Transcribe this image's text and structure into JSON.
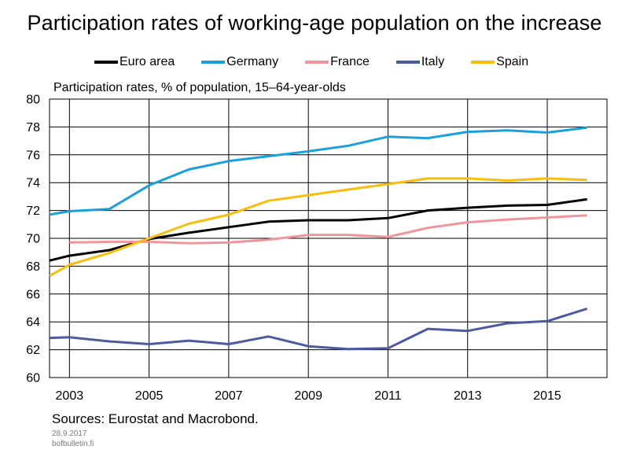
{
  "chart_data": {
    "type": "line",
    "title": "Participation rates of working-age population on the increase",
    "ylabel": "Participation rates, % of population, 15–64-year-olds",
    "xlabel": "",
    "x_range": [
      2002.5,
      2016.5
    ],
    "ylim": [
      60,
      80
    ],
    "y_ticks": [
      "60",
      "62",
      "64",
      "66",
      "68",
      "70",
      "72",
      "74",
      "76",
      "78",
      "80"
    ],
    "x_ticks": [
      "2003",
      "2005",
      "2007",
      "2009",
      "2011",
      "2013",
      "2015"
    ],
    "grid": true,
    "legend_position": "top",
    "series": [
      {
        "name": "Euro area",
        "color": "#000000",
        "points": [
          [
            2002.5,
            68.4
          ],
          [
            2003,
            68.75
          ],
          [
            2004,
            69.15
          ],
          [
            2005,
            69.95
          ],
          [
            2006,
            70.4
          ],
          [
            2007,
            70.8
          ],
          [
            2008,
            71.2
          ],
          [
            2009,
            71.3
          ],
          [
            2010,
            71.3
          ],
          [
            2011,
            71.45
          ],
          [
            2012,
            72.0
          ],
          [
            2013,
            72.2
          ],
          [
            2014,
            72.35
          ],
          [
            2015,
            72.4
          ],
          [
            2016,
            72.8
          ]
        ]
      },
      {
        "name": "Germany",
        "color": "#1aa0dc",
        "points": [
          [
            2002.5,
            71.7
          ],
          [
            2003,
            71.95
          ],
          [
            2004,
            72.1
          ],
          [
            2005,
            73.8
          ],
          [
            2006,
            74.95
          ],
          [
            2007,
            75.55
          ],
          [
            2008,
            75.9
          ],
          [
            2009,
            76.25
          ],
          [
            2010,
            76.65
          ],
          [
            2011,
            77.3
          ],
          [
            2012,
            77.2
          ],
          [
            2013,
            77.65
          ],
          [
            2014,
            77.75
          ],
          [
            2015,
            77.6
          ],
          [
            2016,
            77.95
          ]
        ]
      },
      {
        "name": "France",
        "color": "#f0959a",
        "points": [
          [
            2003,
            69.7
          ],
          [
            2004,
            69.75
          ],
          [
            2005,
            69.75
          ],
          [
            2006,
            69.65
          ],
          [
            2007,
            69.7
          ],
          [
            2008,
            69.9
          ],
          [
            2009,
            70.25
          ],
          [
            2010,
            70.25
          ],
          [
            2011,
            70.1
          ],
          [
            2012,
            70.75
          ],
          [
            2013,
            71.15
          ],
          [
            2014,
            71.35
          ],
          [
            2015,
            71.5
          ],
          [
            2016,
            71.65
          ]
        ]
      },
      {
        "name": "Italy",
        "color": "#4d5aa0",
        "points": [
          [
            2002.5,
            62.85
          ],
          [
            2003,
            62.9
          ],
          [
            2004,
            62.6
          ],
          [
            2005,
            62.4
          ],
          [
            2006,
            62.65
          ],
          [
            2007,
            62.4
          ],
          [
            2008,
            62.95
          ],
          [
            2009,
            62.25
          ],
          [
            2010,
            62.05
          ],
          [
            2011,
            62.1
          ],
          [
            2012,
            63.5
          ],
          [
            2013,
            63.35
          ],
          [
            2014,
            63.9
          ],
          [
            2015,
            64.05
          ],
          [
            2016,
            64.95
          ]
        ]
      },
      {
        "name": "Spain",
        "color": "#f7be0e",
        "points": [
          [
            2002.5,
            67.3
          ],
          [
            2003,
            68.1
          ],
          [
            2004,
            68.95
          ],
          [
            2005,
            70.0
          ],
          [
            2006,
            71.05
          ],
          [
            2007,
            71.7
          ],
          [
            2008,
            72.7
          ],
          [
            2009,
            73.1
          ],
          [
            2010,
            73.5
          ],
          [
            2011,
            73.9
          ],
          [
            2012,
            74.3
          ],
          [
            2013,
            74.3
          ],
          [
            2014,
            74.15
          ],
          [
            2015,
            74.3
          ],
          [
            2016,
            74.2
          ]
        ]
      }
    ]
  },
  "footer": {
    "sources": "Sources: Eurostat and Macrobond.",
    "date": "28.9.2017",
    "site": "bofbulletin.fi"
  }
}
